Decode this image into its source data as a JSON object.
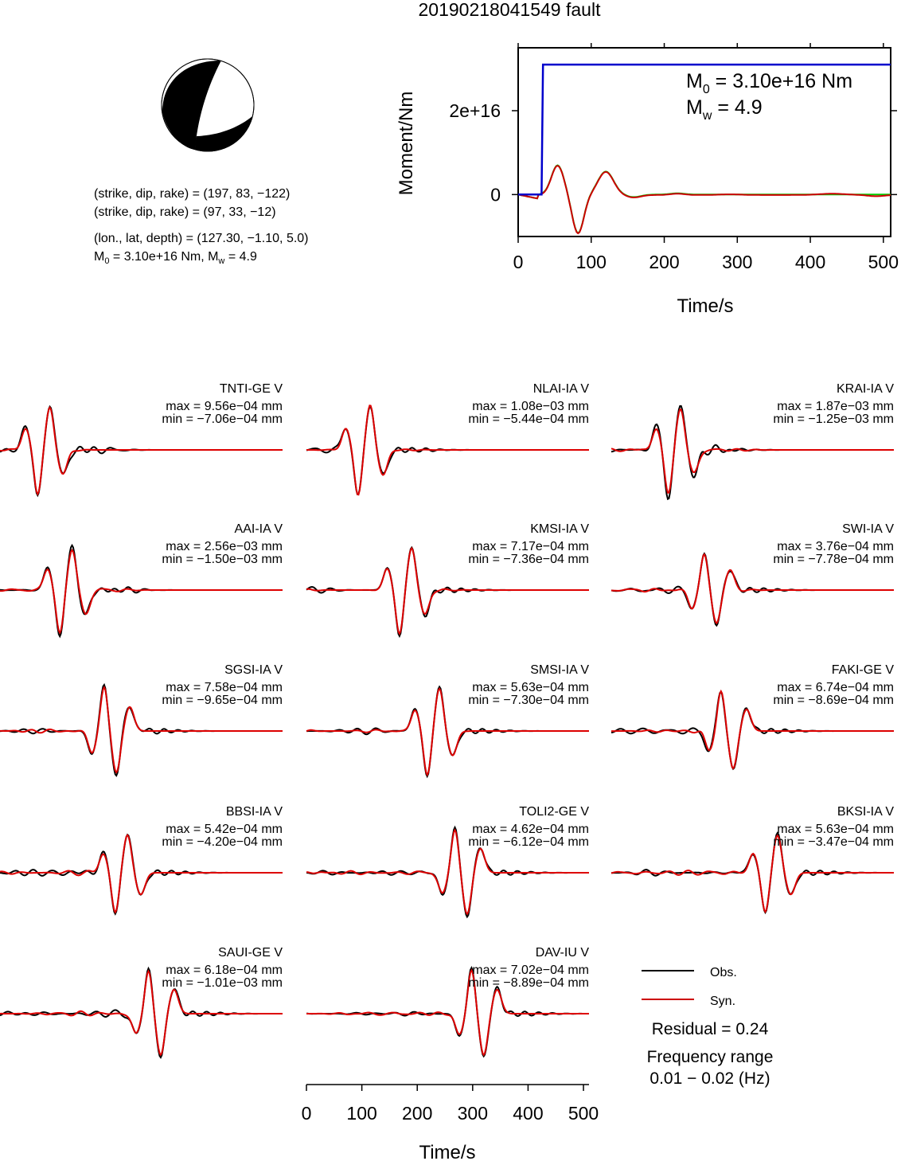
{
  "title": "20190218041549 fault",
  "info": {
    "line1": "(strike, dip, rake) = (197, 83, −122)",
    "line2": "(strike, dip, rake) = (97, 33, −12)",
    "line3": "(lon., lat, depth) = (127.30, −1.10, 5.0)",
    "m0_label": "M",
    "m0_sub": "0",
    "m0_rest": " = 3.10e+16 Nm, M",
    "mw_sub": "w",
    "mw_rest": " = 4.9"
  },
  "moment_plot": {
    "ylabel": "Moment/Nm",
    "xlabel": "Time/s",
    "annot_m0_main": "M",
    "annot_m0_sub": "0",
    "annot_m0_rest": " = 3.10e+16 Nm",
    "annot_mw_main": "M",
    "annot_mw_sub": "w",
    "annot_mw_rest": " = 4.9",
    "xticks": [
      "0",
      "100",
      "200",
      "300",
      "400",
      "500"
    ],
    "yticks": [
      "0",
      "2e+16"
    ]
  },
  "chart_data": {
    "type": "line",
    "moment": {
      "xlim": [
        0,
        510
      ],
      "ylim": [
        -1e+16,
        3.5e+16
      ],
      "step_time": 32,
      "step_value": 3.1e+16,
      "colors": {
        "cumulative": "#0000cc",
        "rate_obs": "#cc0000",
        "rate_syn": "#00cc00"
      }
    },
    "waveform_xlim": [
      0,
      510
    ],
    "stations": [
      {
        "name": "TNTI-GE V",
        "max": "max = 9.56e−04 mm",
        "min": "min = −7.06e−04 mm"
      },
      {
        "name": "NLAI-IA V",
        "max": "max = 1.08e−03 mm",
        "min": "min = −5.44e−04 mm"
      },
      {
        "name": "KRAI-IA V",
        "max": "max = 1.87e−03 mm",
        "min": "min = −1.25e−03 mm"
      },
      {
        "name": "AAI-IA V",
        "max": "max = 2.56e−03 mm",
        "min": "min = −1.50e−03 mm"
      },
      {
        "name": "KMSI-IA V",
        "max": "max = 7.17e−04 mm",
        "min": "min = −7.36e−04 mm"
      },
      {
        "name": "SWI-IA V",
        "max": "max = 3.76e−04 mm",
        "min": "min = −7.78e−04 mm"
      },
      {
        "name": "SGSI-IA V",
        "max": "max = 7.58e−04 mm",
        "min": "min = −9.65e−04 mm"
      },
      {
        "name": "SMSI-IA V",
        "max": "max = 5.63e−04 mm",
        "min": "min = −7.30e−04 mm"
      },
      {
        "name": "FAKI-GE V",
        "max": "max = 6.74e−04 mm",
        "min": "min = −8.69e−04 mm"
      },
      {
        "name": "BBSI-IA V",
        "max": "max = 5.42e−04 mm",
        "min": "min = −4.20e−04 mm"
      },
      {
        "name": "TOLI2-GE V",
        "max": "max = 4.62e−04 mm",
        "min": "min = −6.12e−04 mm"
      },
      {
        "name": "BKSI-IA V",
        "max": "max = 5.63e−04 mm",
        "min": "min = −3.47e−04 mm"
      },
      {
        "name": "SAUI-GE V",
        "max": "max = 6.18e−04 mm",
        "min": "min = −1.01e−03 mm"
      },
      {
        "name": "DAV-IU V",
        "max": "max = 7.02e−04 mm",
        "min": "min = −8.89e−04 mm"
      }
    ],
    "waveform_axis": {
      "xlabel": "Time/s",
      "xticks": [
        "0",
        "100",
        "200",
        "300",
        "400",
        "500"
      ]
    }
  },
  "legend": {
    "obs": "Obs.",
    "syn": "Syn.",
    "residual": "Residual = 0.24",
    "freq_title": "Frequency range",
    "freq_value": "0.01 − 0.02 (Hz)"
  }
}
